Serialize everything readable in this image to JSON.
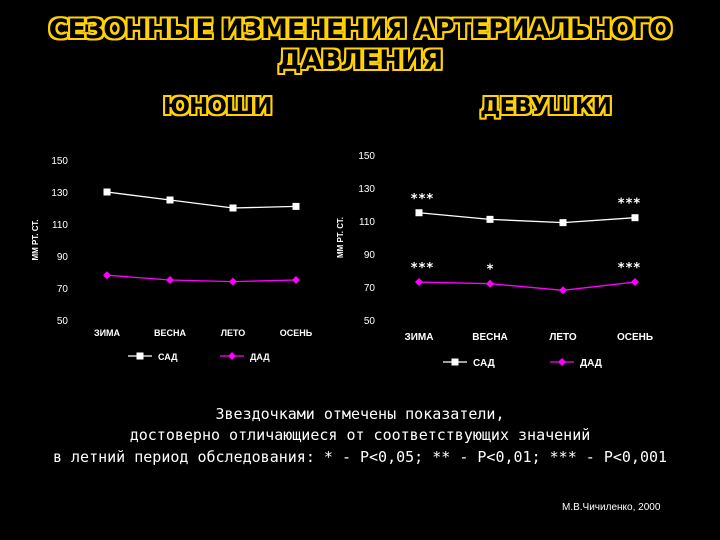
{
  "title": "СЕЗОННЫЕ ИЗМЕНЕНИЯ АРТЕРИАЛЬНОГО ДАВЛЕНИЯ",
  "note": {
    "line1": "Звездочками отмечены показатели,",
    "line2": "достоверно отличающиеся от соответствующих значений",
    "line3": "в летний период обследования: * - Р<0,05; ** - Р<0,01; *** - Р<0,001"
  },
  "credit": "М.В.Чичиленко, 2000",
  "colors": {
    "sad": "#ffffff",
    "dad": "#ff00ff",
    "title": "#ffd200",
    "axis": "#ffffff"
  },
  "chart_data": [
    {
      "type": "line",
      "group_label": "ЮНОШИ",
      "ylabel": "ММ РТ. СТ.",
      "categories": [
        "ЗИМА",
        "ВЕСНА",
        "ЛЕТО",
        "ОСЕНЬ"
      ],
      "ylim": [
        50,
        150
      ],
      "yticks": [
        150,
        130,
        110,
        90,
        70,
        50
      ],
      "series": [
        {
          "name": "САД",
          "marker": "square",
          "values": [
            130,
            125,
            120,
            121
          ]
        },
        {
          "name": "ДАД",
          "marker": "diamond",
          "values": [
            78,
            75,
            74,
            75
          ]
        }
      ],
      "annotations": []
    },
    {
      "type": "line",
      "group_label": "ДЕВУШКИ",
      "ylabel": "ММ РТ. СТ.",
      "categories": [
        "ЗИМА",
        "ВЕСНА",
        "ЛЕТО",
        "ОСЕНЬ"
      ],
      "ylim": [
        50,
        150
      ],
      "yticks": [
        150,
        130,
        110,
        90,
        70,
        50
      ],
      "series": [
        {
          "name": "САД",
          "marker": "square",
          "values": [
            115,
            111,
            109,
            112
          ]
        },
        {
          "name": "ДАД",
          "marker": "diamond",
          "values": [
            73,
            72,
            68,
            73
          ]
        }
      ],
      "annotations": [
        {
          "series": "САД",
          "category": "ЗИМА",
          "label": "***"
        },
        {
          "series": "САД",
          "category": "ОСЕНЬ",
          "label": "***"
        },
        {
          "series": "ДАД",
          "category": "ЗИМА",
          "label": "***"
        },
        {
          "series": "ДАД",
          "category": "ВЕСНА",
          "label": "*"
        },
        {
          "series": "ДАД",
          "category": "ОСЕНЬ",
          "label": "***"
        }
      ]
    }
  ]
}
